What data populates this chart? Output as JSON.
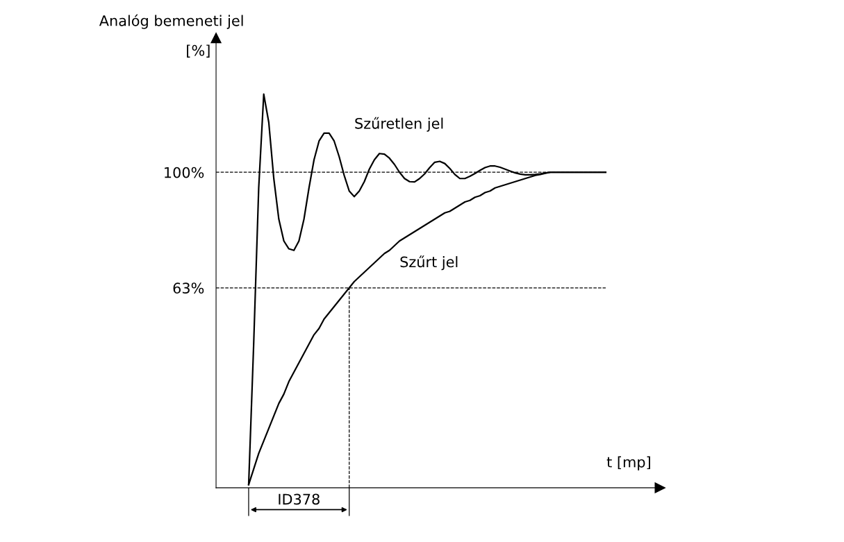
{
  "chart_data": {
    "type": "line",
    "xlabel": "t [mp]",
    "ylabel": "Analóg bemeneti jel",
    "categories": [
      null,
      null,
      null,
      null,
      null,
      null,
      null,
      null,
      null,
      null,
      null,
      null,
      null,
      null,
      null,
      null,
      null,
      null,
      null,
      null,
      null,
      null,
      null,
      null,
      null,
      null,
      null,
      null,
      null,
      null,
      null,
      null,
      null,
      null,
      null,
      null,
      null,
      null,
      null,
      null,
      null,
      null,
      null,
      null,
      null,
      null,
      null,
      null,
      null,
      null,
      null,
      null,
      null,
      null,
      null,
      null,
      null,
      null,
      null,
      null,
      null,
      null,
      null,
      null,
      null,
      null,
      null,
      null,
      null,
      null,
      null,
      null
    ],
    "series": [
      {
        "name": "Szűretlen jel",
        "color": "#000000",
        "values": [
          0,
          45,
          95,
          125,
          116,
          98,
          85,
          78,
          75.5,
          75,
          78,
          85,
          95,
          104,
          110,
          112.5,
          112.5,
          110,
          105,
          99,
          94,
          92.2,
          94,
          97,
          101,
          104,
          106,
          105.8,
          104.5,
          102.5,
          100,
          98,
          97,
          96.9,
          98,
          99.5,
          101.5,
          103.2,
          103.5,
          102.8,
          101.2,
          99.3,
          98,
          98,
          98.7,
          99.6,
          100.6,
          101.5,
          102,
          102,
          101.6,
          101,
          100.4,
          99.8,
          99.4,
          99.2,
          99.2,
          99.3,
          99.5,
          99.8,
          100,
          100,
          100,
          100,
          100,
          100,
          100,
          100,
          100,
          100,
          100,
          100
        ]
      },
      {
        "name": "Szűrt jel",
        "color": "#000000",
        "values": [
          0,
          5,
          10,
          14,
          18,
          22,
          26,
          29,
          33,
          36,
          39,
          42,
          45,
          48,
          50,
          53,
          55,
          57,
          59,
          61,
          63,
          65,
          66.5,
          68,
          69.5,
          71,
          72.5,
          74,
          75,
          76.5,
          78,
          79,
          80,
          81,
          82,
          83,
          84,
          85,
          86,
          87,
          87.5,
          88.5,
          89.5,
          90.5,
          91,
          92,
          92.5,
          93.5,
          94,
          95,
          95.5,
          96,
          96.5,
          97,
          97.5,
          98,
          98.5,
          99,
          99.3,
          99.7,
          100,
          100,
          100,
          100,
          100,
          100,
          100,
          100,
          100,
          100,
          100,
          100
        ]
      }
    ],
    "ylim": [
      -1,
      143
    ],
    "yticks": [
      {
        "value": 63,
        "label": "63%"
      },
      {
        "value": 100,
        "label": "100%"
      }
    ],
    "ref_lines": [
      {
        "axis": "y",
        "value": 100,
        "label": null,
        "line_style": "dashed"
      },
      {
        "axis": "y",
        "value": 63,
        "label": null,
        "line_style": "dashed"
      }
    ],
    "annotations": [
      "[%]",
      "ID378"
    ],
    "grid": false,
    "marker": "none",
    "line_style": "solid"
  }
}
